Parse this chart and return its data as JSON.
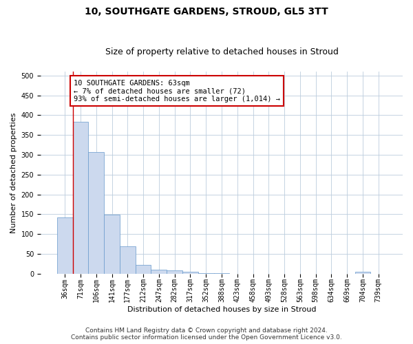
{
  "title": "10, SOUTHGATE GARDENS, STROUD, GL5 3TT",
  "subtitle": "Size of property relative to detached houses in Stroud",
  "xlabel": "Distribution of detached houses by size in Stroud",
  "ylabel": "Number of detached properties",
  "bar_labels": [
    "36sqm",
    "71sqm",
    "106sqm",
    "141sqm",
    "177sqm",
    "212sqm",
    "247sqm",
    "282sqm",
    "317sqm",
    "352sqm",
    "388sqm",
    "423sqm",
    "458sqm",
    "493sqm",
    "528sqm",
    "563sqm",
    "598sqm",
    "634sqm",
    "669sqm",
    "704sqm",
    "739sqm"
  ],
  "bar_values": [
    143,
    383,
    307,
    149,
    69,
    22,
    11,
    9,
    5,
    1,
    1,
    0,
    0,
    0,
    0,
    0,
    0,
    0,
    0,
    5,
    0
  ],
  "bar_color": "#ccd9ee",
  "bar_edge_color": "#6699cc",
  "annotation_text": "10 SOUTHGATE GARDENS: 63sqm\n← 7% of detached houses are smaller (72)\n93% of semi-detached houses are larger (1,014) →",
  "annotation_box_color": "#ffffff",
  "annotation_box_edge": "#cc0000",
  "vline_color": "#cc0000",
  "vline_x_index": 0.5,
  "ylim": [
    0,
    510
  ],
  "yticks": [
    0,
    50,
    100,
    150,
    200,
    250,
    300,
    350,
    400,
    450,
    500
  ],
  "grid_color": "#bbccdd",
  "background_color": "#ffffff",
  "footer_line1": "Contains HM Land Registry data © Crown copyright and database right 2024.",
  "footer_line2": "Contains public sector information licensed under the Open Government Licence v3.0.",
  "title_fontsize": 10,
  "subtitle_fontsize": 9,
  "axis_label_fontsize": 8,
  "tick_fontsize": 7,
  "annotation_fontsize": 7.5,
  "footer_fontsize": 6.5
}
